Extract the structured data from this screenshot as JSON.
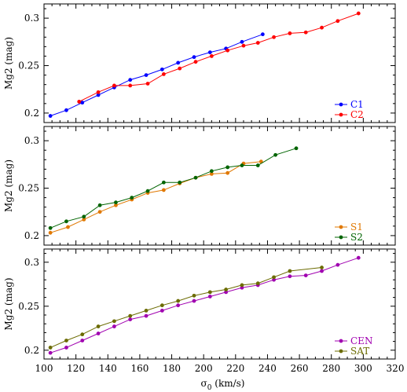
{
  "chart_data": [
    {
      "type": "line",
      "ylabel": "Mg2 (mag)",
      "xlim": [
        100,
        320
      ],
      "ylim": [
        0.19,
        0.315
      ],
      "yticks": [
        0.2,
        0.25,
        0.3
      ],
      "ytick_labels": [
        "0.2",
        "0.25",
        "0.3"
      ],
      "legend_position": "bottom-right",
      "series": [
        {
          "name": "C1",
          "color": "#0000ff",
          "x": [
            104,
            114,
            124,
            134,
            144,
            154,
            164,
            174,
            184,
            194,
            204,
            214,
            224,
            237
          ],
          "y": [
            0.197,
            0.203,
            0.211,
            0.219,
            0.227,
            0.235,
            0.24,
            0.246,
            0.253,
            0.259,
            0.264,
            0.268,
            0.275,
            0.283
          ]
        },
        {
          "name": "C2",
          "color": "#ff0000",
          "x": [
            122,
            134,
            144,
            154,
            165,
            175,
            185,
            195,
            205,
            215,
            225,
            234,
            244,
            254,
            264,
            274,
            284,
            297
          ],
          "y": [
            0.212,
            0.222,
            0.229,
            0.229,
            0.231,
            0.241,
            0.247,
            0.254,
            0.26,
            0.266,
            0.271,
            0.274,
            0.28,
            0.284,
            0.285,
            0.29,
            0.297,
            0.305
          ]
        }
      ]
    },
    {
      "type": "line",
      "ylabel": "Mg2 (mag)",
      "xlim": [
        100,
        320
      ],
      "ylim": [
        0.19,
        0.315
      ],
      "yticks": [
        0.2,
        0.25,
        0.3
      ],
      "ytick_labels": [
        "0.2",
        "0.25",
        "0.3"
      ],
      "legend_position": "bottom-right",
      "series": [
        {
          "name": "S1",
          "color": "#e07800",
          "x": [
            104,
            115,
            125,
            135,
            145,
            155,
            165,
            175,
            185,
            195,
            205,
            215,
            225,
            236
          ],
          "y": [
            0.203,
            0.209,
            0.217,
            0.225,
            0.232,
            0.238,
            0.245,
            0.248,
            0.255,
            0.261,
            0.265,
            0.266,
            0.276,
            0.278
          ]
        },
        {
          "name": "S2",
          "color": "#006400",
          "x": [
            104,
            114,
            125,
            135,
            145,
            155,
            165,
            175,
            185,
            195,
            205,
            215,
            224,
            234,
            245,
            258
          ],
          "y": [
            0.208,
            0.215,
            0.22,
            0.232,
            0.235,
            0.24,
            0.247,
            0.256,
            0.256,
            0.261,
            0.268,
            0.272,
            0.274,
            0.274,
            0.285,
            0.292
          ]
        }
      ]
    },
    {
      "type": "line",
      "xlabel": "σ0 (km/s)",
      "ylabel": "Mg2 (mag)",
      "xlim": [
        100,
        320
      ],
      "ylim": [
        0.19,
        0.315
      ],
      "xticks": [
        100,
        120,
        140,
        160,
        180,
        200,
        220,
        240,
        260,
        280,
        300,
        320
      ],
      "xtick_labels": [
        "100",
        "120",
        "140",
        "160",
        "180",
        "200",
        "220",
        "240",
        "260",
        "280",
        "300",
        "320"
      ],
      "yticks": [
        0.2,
        0.25,
        0.3
      ],
      "ytick_labels": [
        "0.2",
        "0.25",
        "0.3"
      ],
      "legend_position": "bottom-right",
      "series": [
        {
          "name": "CEN",
          "color": "#a000b0",
          "x": [
            104,
            114,
            124,
            134,
            144,
            154,
            164,
            174,
            184,
            194,
            204,
            214,
            224,
            234,
            244,
            254,
            264,
            274,
            284,
            297
          ],
          "y": [
            0.197,
            0.203,
            0.211,
            0.219,
            0.227,
            0.235,
            0.239,
            0.245,
            0.251,
            0.256,
            0.261,
            0.266,
            0.271,
            0.274,
            0.28,
            0.284,
            0.285,
            0.29,
            0.297,
            0.305
          ]
        },
        {
          "name": "SAT",
          "color": "#6b6b00",
          "x": [
            104,
            114,
            124,
            134,
            144,
            154,
            164,
            174,
            184,
            194,
            204,
            214,
            224,
            234,
            244,
            254,
            274
          ],
          "y": [
            0.203,
            0.211,
            0.218,
            0.227,
            0.233,
            0.239,
            0.245,
            0.251,
            0.256,
            0.262,
            0.266,
            0.269,
            0.274,
            0.276,
            0.283,
            0.29,
            0.294
          ]
        }
      ]
    }
  ]
}
